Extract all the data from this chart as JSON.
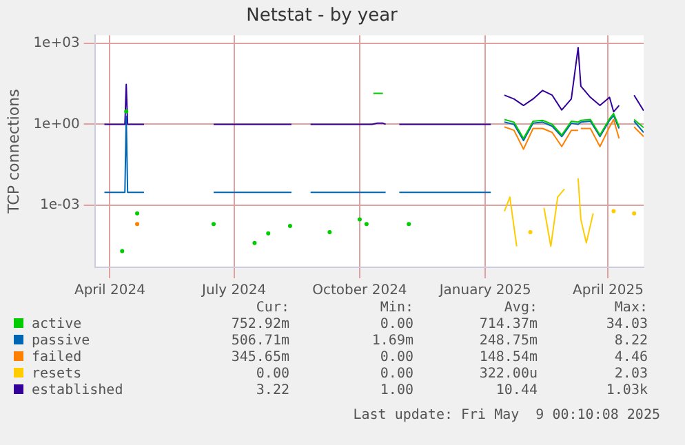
{
  "chart_data": {
    "type": "line",
    "title": "Netstat - by year",
    "ylabel": "TCP connections",
    "log": "y",
    "grid": true,
    "legend": "bottom",
    "marker": "none",
    "line_style": "solid",
    "xlim": [
      "2024-03-21",
      "2025-04-27"
    ],
    "xticks": [
      {
        "value": "2024-04-01",
        "label": "April 2024"
      },
      {
        "value": "2024-07-01",
        "label": "July 2024"
      },
      {
        "value": "2024-10-01",
        "label": "October 2024"
      },
      {
        "value": "2025-01-01",
        "label": "January 2025"
      },
      {
        "value": "2025-04-01",
        "label": "April 2025"
      }
    ],
    "ylim": [
      5e-06,
      2000
    ],
    "yticks": [
      {
        "value": 0.001,
        "label": "1e-03"
      },
      {
        "value": 1,
        "label": "1e+00"
      },
      {
        "value": 1000,
        "label": "1e+03"
      }
    ],
    "series": [
      {
        "name": "active",
        "color": "#00cc00",
        "x": [
          "2024-04-10",
          "2024-04-12",
          "2024-04-13",
          "2024-04-17",
          "2024-04-21",
          "2024-05-10",
          "2024-06-16",
          "2024-07-01",
          "2024-07-16",
          "2024-07-20",
          "2024-07-26",
          "2024-08-01",
          "2024-08-11",
          "2024-08-25",
          "2024-09-09",
          "2024-09-20",
          "2024-10-01",
          "2024-10-03",
          "2024-10-06",
          "2024-10-08",
          "2024-10-11",
          "2024-10-18",
          "2024-10-25",
          "2024-11-06",
          "2024-12-01",
          "2025-01-15",
          "2025-01-22",
          "2025-01-29",
          "2025-02-05",
          "2025-02-12",
          "2025-02-19",
          "2025-02-26",
          "2025-03-05",
          "2025-03-10",
          "2025-03-12",
          "2025-03-19",
          "2025-03-26",
          "2025-04-02",
          "2025-04-05",
          "2025-04-09",
          "2025-04-14",
          "2025-04-20",
          "2025-04-27"
        ],
        "values": [
          2e-05,
          null,
          3,
          null,
          0.0005,
          null,
          0.0002,
          null,
          4e-05,
          null,
          9e-05,
          null,
          0.00017,
          null,
          0.0001,
          null,
          0.0003,
          null,
          0.0002,
          null,
          14,
          14,
          null,
          0.0002,
          null,
          1.5,
          1.2,
          0.3,
          1.3,
          1.4,
          1,
          0.4,
          1.3,
          1.2,
          1.4,
          1.5,
          0.4,
          1.6,
          2.5,
          0.8,
          null,
          1.5,
          0.75
        ]
      },
      {
        "name": "passive",
        "color": "#0066b3",
        "x": [
          "2024-03-28",
          "2024-04-12",
          "2024-04-13",
          "2024-04-14",
          "2024-04-26",
          "2024-05-10",
          "2024-06-16",
          "2024-08-12",
          "2024-08-19",
          "2024-08-26",
          "2024-10-20",
          "2024-10-25",
          "2024-10-30",
          "2025-01-05",
          "2025-01-10",
          "2025-01-15",
          "2025-01-22",
          "2025-01-29",
          "2025-02-05",
          "2025-02-12",
          "2025-02-19",
          "2025-02-26",
          "2025-03-05",
          "2025-03-10",
          "2025-03-12",
          "2025-03-19",
          "2025-03-26",
          "2025-04-02",
          "2025-04-05",
          "2025-04-09",
          "2025-04-14",
          "2025-04-20",
          "2025-04-27"
        ],
        "values": [
          0.003,
          0.003,
          2,
          0.003,
          0.003,
          null,
          0.003,
          0.003,
          null,
          0.003,
          0.003,
          null,
          0.003,
          0.003,
          null,
          1.2,
          1,
          0.25,
          1.1,
          1.2,
          0.85,
          0.35,
          1.1,
          1,
          1.2,
          1.3,
          0.35,
          1.4,
          2.1,
          0.7,
          null,
          1.3,
          0.5
        ]
      },
      {
        "name": "failed",
        "color": "#ff8000",
        "x": [
          "2024-04-21",
          "2024-12-01",
          "2025-01-15",
          "2025-01-22",
          "2025-01-29",
          "2025-02-05",
          "2025-02-12",
          "2025-02-19",
          "2025-02-26",
          "2025-03-05",
          "2025-03-10",
          "2025-03-11",
          "2025-03-12",
          "2025-03-19",
          "2025-03-26",
          "2025-04-02",
          "2025-04-05",
          "2025-04-09",
          "2025-04-14",
          "2025-04-20",
          "2025-04-27"
        ],
        "values": [
          0.0002,
          null,
          0.8,
          0.6,
          0.12,
          0.7,
          0.7,
          0.5,
          0.15,
          0.6,
          0.6,
          null,
          0.7,
          0.7,
          0.15,
          0.8,
          1.5,
          0.3,
          null,
          0.8,
          0.35
        ]
      },
      {
        "name": "resets",
        "color": "#ffcc00",
        "x": [
          "2025-01-15",
          "2025-01-19",
          "2025-01-24",
          "2025-01-29",
          "2025-02-03",
          "2025-02-08",
          "2025-02-13",
          "2025-02-18",
          "2025-02-23",
          "2025-02-28",
          "2025-03-05",
          "2025-03-10",
          "2025-03-12",
          "2025-03-16",
          "2025-03-21",
          "2025-03-26",
          "2025-03-31",
          "2025-04-05",
          "2025-04-09",
          "2025-04-14",
          "2025-04-20"
        ],
        "values": [
          0.0006,
          0.002,
          3e-05,
          null,
          0.0001,
          null,
          0.0008,
          3e-05,
          0.002,
          0.004,
          null,
          0.01,
          0.0003,
          4e-05,
          0.0005,
          null,
          null,
          0.0006,
          null,
          null,
          0.0005
        ]
      },
      {
        "name": "established",
        "color": "#330099",
        "x": [
          "2024-03-28",
          "2024-04-12",
          "2024-04-13",
          "2024-04-14",
          "2024-04-26",
          "2024-05-10",
          "2024-06-16",
          "2024-08-12",
          "2024-08-19",
          "2024-08-26",
          "2024-10-10",
          "2024-10-14",
          "2024-10-18",
          "2024-10-20",
          "2024-10-25",
          "2024-10-30",
          "2025-01-05",
          "2025-01-10",
          "2025-01-15",
          "2025-01-22",
          "2025-01-29",
          "2025-02-05",
          "2025-02-12",
          "2025-02-19",
          "2025-02-26",
          "2025-03-05",
          "2025-03-10",
          "2025-03-12",
          "2025-03-19",
          "2025-03-26",
          "2025-04-02",
          "2025-04-05",
          "2025-04-09",
          "2025-04-14",
          "2025-04-20",
          "2025-04-27"
        ],
        "values": [
          1,
          1,
          30,
          1,
          1,
          null,
          1,
          1,
          null,
          1,
          1,
          1.1,
          1.1,
          1,
          null,
          1,
          1,
          null,
          12,
          8.7,
          5,
          8.7,
          18,
          12,
          3.4,
          8.7,
          700,
          26,
          10,
          5,
          10,
          2.9,
          5,
          null,
          12,
          3.2
        ]
      }
    ],
    "annotations": [
      "Cur:",
      "Min:",
      "Avg:",
      "Max:",
      "752.92m",
      "0.00",
      "714.37m",
      "34.03",
      "506.71m",
      "1.69m",
      "248.75m",
      "8.22",
      "345.65m",
      "0.00",
      "148.54m",
      "4.46",
      "0.00",
      "0.00",
      "322.00u",
      "2.03",
      "3.22",
      "1.00",
      "10.44",
      "1.03k",
      "Last update: Fri May  9 00:10:08 2025"
    ]
  }
}
